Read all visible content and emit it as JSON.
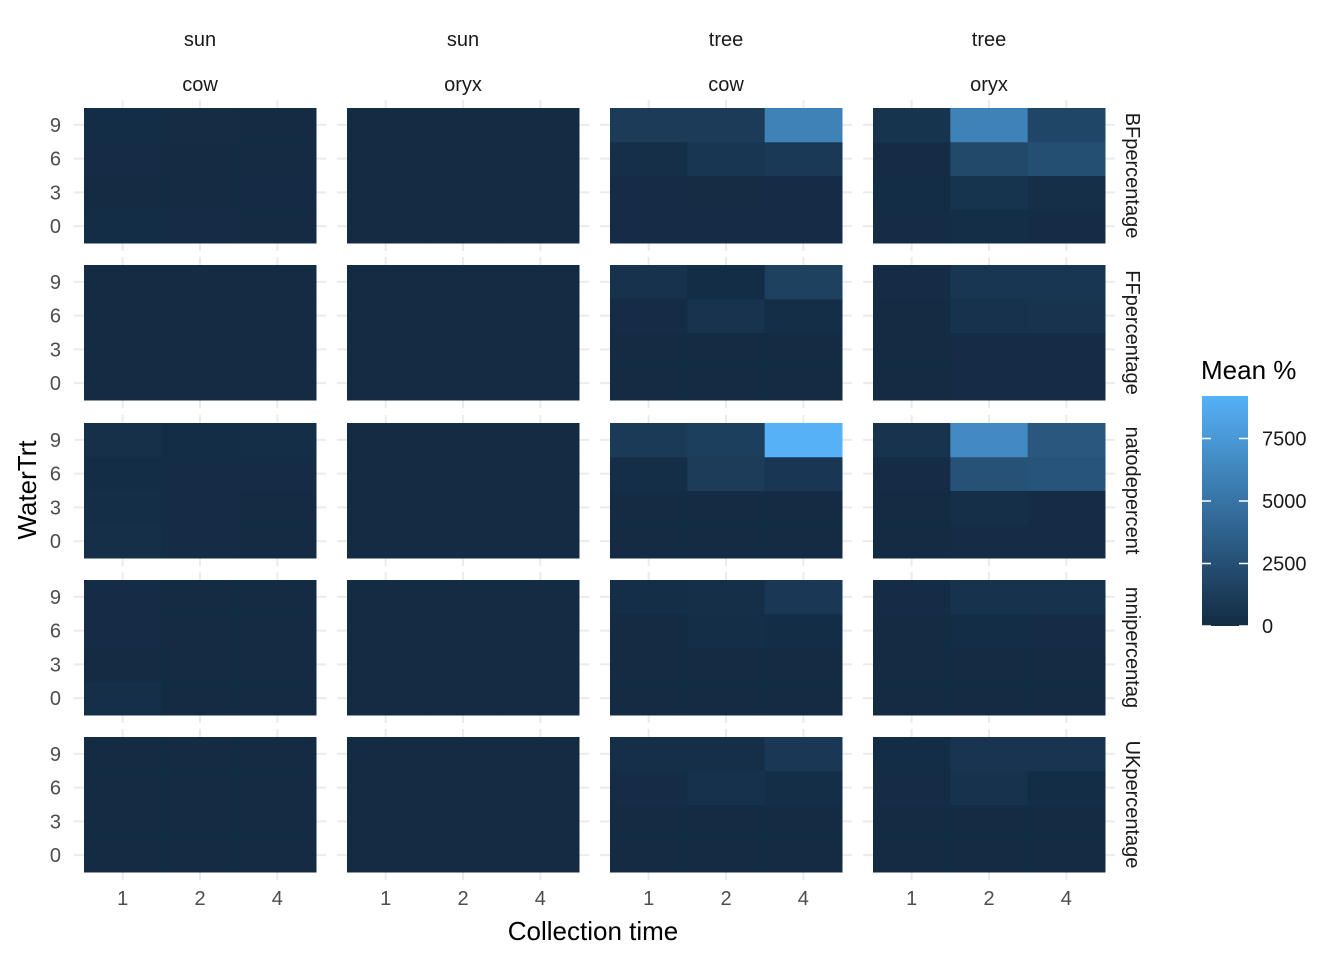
{
  "chart_data": {
    "type": "heatmap",
    "xlabel": "Collection time",
    "ylabel": "WaterTrt",
    "x_categories": [
      "1",
      "2",
      "4"
    ],
    "y_categories": [
      "0",
      "3",
      "6",
      "9"
    ],
    "col_facets": [
      {
        "top": "sun",
        "bottom": "cow"
      },
      {
        "top": "sun",
        "bottom": "oryx"
      },
      {
        "top": "tree",
        "bottom": "cow"
      },
      {
        "top": "tree",
        "bottom": "oryx"
      }
    ],
    "row_facets": [
      "BFpercentage",
      "FFpercentage",
      "natodepercent",
      "mnipercentag",
      "UKpercentage"
    ],
    "legend": {
      "title": "Mean %",
      "breaks": [
        0,
        2500,
        5000,
        7500
      ],
      "breaks_labels": [
        "0",
        "2500",
        "5000",
        "7500"
      ],
      "min": 0,
      "max": 9200,
      "low_color": "#132B43",
      "high_color": "#56B1F7",
      "position": "right"
    },
    "grid": true,
    "note": "values: [row_facet][col_facet][y index 0..3 = WaterTrt 0,3,6,9][x index 0..2 = time 1,2,4]",
    "values": [
      [
        [
          [
            150,
            80,
            60
          ],
          [
            60,
            40,
            30
          ],
          [
            80,
            50,
            40
          ],
          [
            150,
            70,
            60
          ]
        ],
        [
          [
            20,
            20,
            20
          ],
          [
            20,
            20,
            20
          ],
          [
            20,
            20,
            20
          ],
          [
            20,
            20,
            20
          ]
        ],
        [
          [
            80,
            100,
            100
          ],
          [
            80,
            120,
            100
          ],
          [
            250,
            750,
            950
          ],
          [
            1100,
            1100,
            6000
          ]
        ],
        [
          [
            100,
            200,
            100
          ],
          [
            150,
            600,
            250
          ],
          [
            100,
            2000,
            2400
          ],
          [
            600,
            6000,
            1850
          ]
        ]
      ],
      [
        [
          [
            20,
            20,
            20
          ],
          [
            20,
            20,
            20
          ],
          [
            20,
            20,
            20
          ],
          [
            20,
            20,
            20
          ]
        ],
        [
          [
            20,
            20,
            20
          ],
          [
            20,
            20,
            20
          ],
          [
            20,
            20,
            20
          ],
          [
            20,
            20,
            20
          ]
        ],
        [
          [
            50,
            50,
            50
          ],
          [
            50,
            50,
            50
          ],
          [
            100,
            550,
            200
          ],
          [
            450,
            150,
            1500
          ]
        ],
        [
          [
            50,
            100,
            100
          ],
          [
            50,
            100,
            100
          ],
          [
            50,
            500,
            550
          ],
          [
            100,
            700,
            750
          ]
        ]
      ],
      [
        [
          [
            300,
            80,
            60
          ],
          [
            200,
            100,
            60
          ],
          [
            150,
            100,
            80
          ],
          [
            350,
            150,
            200
          ]
        ],
        [
          [
            20,
            20,
            20
          ],
          [
            20,
            20,
            20
          ],
          [
            20,
            20,
            20
          ],
          [
            20,
            20,
            20
          ]
        ],
        [
          [
            50,
            50,
            50
          ],
          [
            50,
            50,
            50
          ],
          [
            200,
            1200,
            850
          ],
          [
            1000,
            1400,
            9200
          ]
        ],
        [
          [
            50,
            100,
            100
          ],
          [
            50,
            300,
            100
          ],
          [
            100,
            2700,
            2800
          ],
          [
            550,
            6500,
            3000
          ]
        ]
      ],
      [
        [
          [
            250,
            60,
            60
          ],
          [
            60,
            40,
            40
          ],
          [
            80,
            40,
            40
          ],
          [
            80,
            60,
            60
          ]
        ],
        [
          [
            20,
            20,
            20
          ],
          [
            20,
            20,
            20
          ],
          [
            20,
            20,
            20
          ],
          [
            20,
            20,
            20
          ]
        ],
        [
          [
            50,
            50,
            50
          ],
          [
            50,
            50,
            50
          ],
          [
            50,
            200,
            150
          ],
          [
            200,
            300,
            900
          ]
        ],
        [
          [
            50,
            50,
            50
          ],
          [
            50,
            50,
            50
          ],
          [
            50,
            150,
            100
          ],
          [
            100,
            500,
            450
          ]
        ]
      ],
      [
        [
          [
            60,
            40,
            40
          ],
          [
            40,
            40,
            40
          ],
          [
            50,
            40,
            40
          ],
          [
            60,
            50,
            50
          ]
        ],
        [
          [
            20,
            20,
            20
          ],
          [
            20,
            20,
            20
          ],
          [
            20,
            20,
            20
          ],
          [
            20,
            20,
            20
          ]
        ],
        [
          [
            50,
            50,
            50
          ],
          [
            50,
            50,
            50
          ],
          [
            100,
            400,
            200
          ],
          [
            300,
            250,
            900
          ]
        ],
        [
          [
            50,
            50,
            50
          ],
          [
            50,
            50,
            50
          ],
          [
            100,
            500,
            150
          ],
          [
            150,
            650,
            650
          ]
        ]
      ]
    ]
  }
}
